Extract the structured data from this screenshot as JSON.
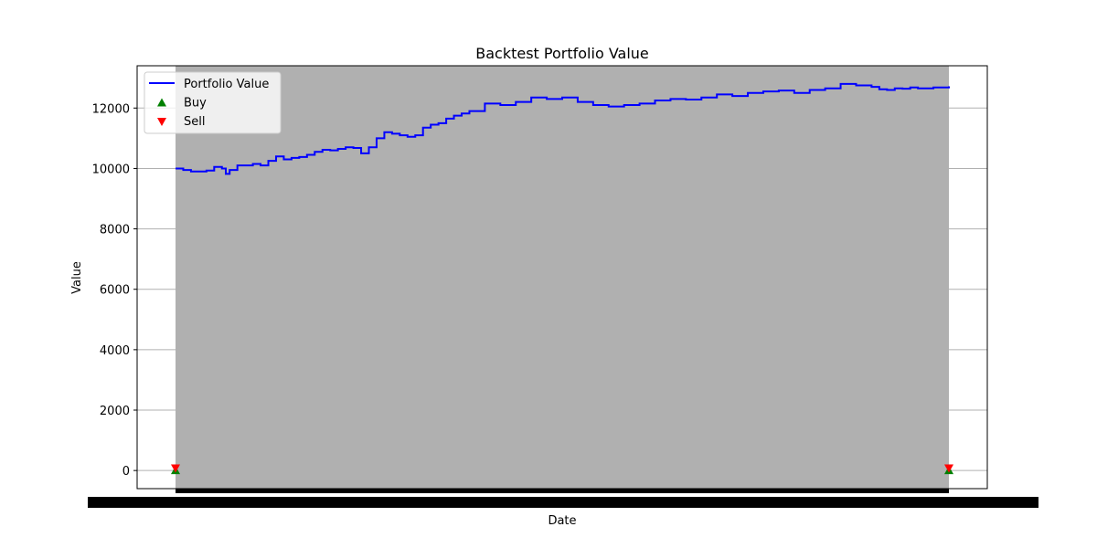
{
  "chart_data": {
    "type": "line",
    "title": "Backtest Portfolio Value",
    "xlabel": "Date",
    "ylabel": "Value",
    "ylim": [
      -600,
      13400
    ],
    "yticks": [
      0,
      2000,
      4000,
      6000,
      8000,
      10000,
      12000
    ],
    "grid": "y",
    "legend_position": "top-left",
    "background_fill": "#b0b0b0",
    "series": [
      {
        "name": "Portfolio Value",
        "color": "#0000ff",
        "x": [
          0,
          0.01,
          0.02,
          0.04,
          0.05,
          0.06,
          0.065,
          0.07,
          0.08,
          0.09,
          0.1,
          0.11,
          0.12,
          0.13,
          0.14,
          0.15,
          0.16,
          0.17,
          0.18,
          0.19,
          0.2,
          0.21,
          0.22,
          0.23,
          0.24,
          0.25,
          0.26,
          0.27,
          0.28,
          0.29,
          0.3,
          0.31,
          0.32,
          0.33,
          0.34,
          0.35,
          0.36,
          0.37,
          0.38,
          0.4,
          0.42,
          0.44,
          0.46,
          0.48,
          0.5,
          0.52,
          0.54,
          0.56,
          0.58,
          0.6,
          0.62,
          0.64,
          0.66,
          0.68,
          0.7,
          0.72,
          0.74,
          0.76,
          0.78,
          0.8,
          0.82,
          0.84,
          0.86,
          0.88,
          0.9,
          0.91,
          0.92,
          0.93,
          0.94,
          0.95,
          0.96,
          0.98,
          1.0
        ],
        "y": [
          10000,
          9950,
          9900,
          9930,
          10050,
          10000,
          9820,
          9950,
          10100,
          10100,
          10150,
          10100,
          10250,
          10400,
          10300,
          10350,
          10380,
          10450,
          10550,
          10620,
          10600,
          10650,
          10700,
          10680,
          10500,
          10700,
          11000,
          11200,
          11150,
          11100,
          11050,
          11100,
          11350,
          11450,
          11500,
          11650,
          11750,
          11820,
          11900,
          12150,
          12100,
          12200,
          12350,
          12300,
          12350,
          12200,
          12100,
          12050,
          12100,
          12150,
          12250,
          12300,
          12280,
          12350,
          12450,
          12400,
          12500,
          12550,
          12580,
          12500,
          12600,
          12650,
          12800,
          12750,
          12700,
          12620,
          12600,
          12650,
          12640,
          12680,
          12650,
          12680,
          12720
        ]
      },
      {
        "name": "Buy",
        "type": "scatter",
        "marker": "triangle-up",
        "color": "#008000",
        "x": [
          0,
          1.0
        ],
        "y": [
          0,
          0
        ]
      },
      {
        "name": "Sell",
        "type": "scatter",
        "marker": "triangle-down",
        "color": "#ff0000",
        "x": [
          0,
          1.0
        ],
        "y": [
          80,
          80
        ]
      }
    ]
  }
}
